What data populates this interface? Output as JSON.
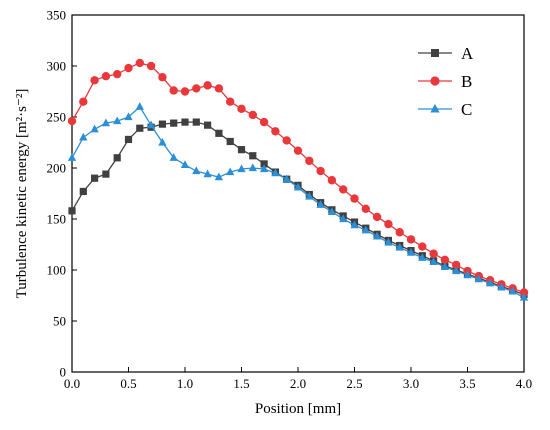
{
  "chart_data": {
    "type": "line",
    "xlabel": "Position [mm]",
    "ylabel": "Turbulence kinetic energy [m²·s⁻²]",
    "xlim": [
      0,
      4
    ],
    "ylim": [
      0,
      350
    ],
    "x_ticks": [
      "0.0",
      "0.5",
      "1.0",
      "1.5",
      "2.0",
      "2.5",
      "3.0",
      "3.5",
      "4.0"
    ],
    "y_ticks": [
      "0",
      "50",
      "100",
      "150",
      "200",
      "250",
      "300",
      "350"
    ],
    "grid": false,
    "legend_position": "top-right",
    "x": [
      0.0,
      0.1,
      0.2,
      0.3,
      0.4,
      0.5,
      0.6,
      0.7,
      0.8,
      0.9,
      1.0,
      1.1,
      1.2,
      1.3,
      1.4,
      1.5,
      1.6,
      1.7,
      1.8,
      1.9,
      2.0,
      2.1,
      2.2,
      2.3,
      2.4,
      2.5,
      2.6,
      2.7,
      2.8,
      2.9,
      3.0,
      3.1,
      3.2,
      3.3,
      3.4,
      3.5,
      3.6,
      3.7,
      3.8,
      3.9,
      4.0
    ],
    "series": [
      {
        "name": "A",
        "color": "#404040",
        "marker": "square",
        "values": [
          158,
          177,
          190,
          194,
          210,
          228,
          239,
          240,
          243,
          244,
          245,
          245,
          242,
          234,
          226,
          218,
          212,
          204,
          196,
          189,
          183,
          174,
          166,
          159,
          153,
          147,
          141,
          135,
          129,
          124,
          119,
          114,
          109,
          104,
          100,
          96,
          92,
          88,
          84,
          80,
          76
        ]
      },
      {
        "name": "B",
        "color": "#e8383b",
        "marker": "circle",
        "values": [
          246,
          265,
          286,
          290,
          292,
          298,
          303,
          300,
          289,
          276,
          275,
          278,
          281,
          278,
          265,
          258,
          252,
          245,
          236,
          227,
          217,
          207,
          197,
          188,
          179,
          170,
          160,
          152,
          145,
          137,
          130,
          123,
          116,
          110,
          105,
          99,
          94,
          90,
          86,
          82,
          78
        ]
      },
      {
        "name": "C",
        "color": "#2c8fd6",
        "marker": "triangle",
        "values": [
          210,
          230,
          238,
          244,
          246,
          250,
          260,
          242,
          225,
          210,
          203,
          197,
          194,
          191,
          196,
          199,
          200,
          199,
          195,
          189,
          181,
          172,
          164,
          157,
          150,
          144,
          139,
          133,
          127,
          122,
          117,
          112,
          108,
          103,
          99,
          95,
          91,
          87,
          83,
          79,
          73
        ]
      }
    ]
  }
}
